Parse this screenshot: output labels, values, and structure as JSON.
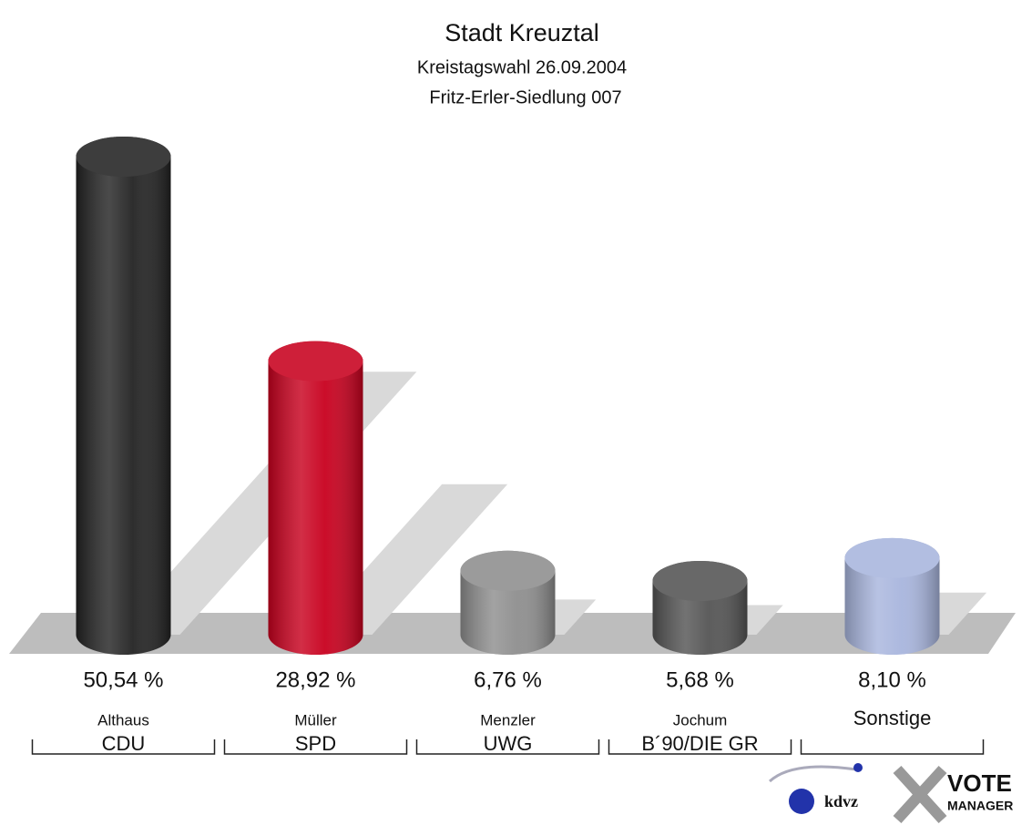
{
  "chart_data": {
    "type": "bar3d",
    "title": "Stadt Kreuztal",
    "subtitle": "Kreistagswahl 26.09.2004",
    "subtitle2": "Fritz-Erler-Siedlung 007",
    "categories": [
      "Althaus",
      "Müller",
      "Menzler",
      "Jochum",
      "Sonstige"
    ],
    "parties": [
      "CDU",
      "SPD",
      "UWG",
      "B´90/DIE GR",
      null
    ],
    "values": [
      50.54,
      28.92,
      6.76,
      5.68,
      8.1
    ],
    "value_labels": [
      "50,54 %",
      "28,92 %",
      "6,76 %",
      "5,68 %",
      "8,10 %"
    ],
    "colors": [
      "#232323",
      "#c8001e",
      "#8e8e8e",
      "#545454",
      "#a8b5dd"
    ]
  },
  "logo": {
    "kdvz": "kdvz",
    "vote": "VOTE",
    "manager": "MANAGER"
  }
}
